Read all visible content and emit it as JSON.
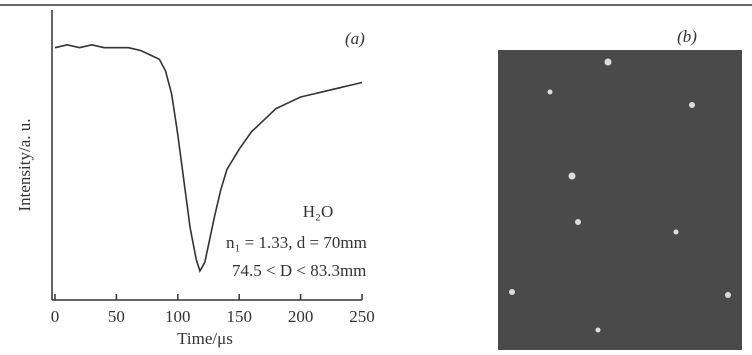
{
  "chart_data": {
    "type": "line",
    "panel_label": "(a)",
    "xlabel": "Time/μs",
    "ylabel": "Intensity/a. u.",
    "x": [
      0,
      10,
      20,
      30,
      40,
      50,
      60,
      70,
      80,
      85,
      90,
      95,
      100,
      105,
      110,
      115,
      118,
      122,
      125,
      130,
      135,
      140,
      150,
      160,
      170,
      180,
      190,
      200,
      210,
      220,
      230,
      240,
      250
    ],
    "series": [
      {
        "color": "#333333",
        "values": [
          0.87,
          0.88,
          0.87,
          0.88,
          0.87,
          0.87,
          0.87,
          0.86,
          0.84,
          0.83,
          0.79,
          0.71,
          0.57,
          0.41,
          0.25,
          0.14,
          0.1,
          0.13,
          0.19,
          0.29,
          0.38,
          0.45,
          0.52,
          0.58,
          0.62,
          0.66,
          0.68,
          0.7,
          0.71,
          0.72,
          0.73,
          0.74,
          0.75
        ]
      }
    ],
    "xlim": [
      0,
      250
    ],
    "xticks": [
      0,
      50,
      100,
      150,
      200,
      250
    ],
    "ylim": [
      0,
      1
    ],
    "annotations": [
      "H₂O",
      "n₁ = 1.33, d = 70mm",
      "74.5 < D < 83.3mm"
    ]
  },
  "image_panel": {
    "label": "(b)"
  }
}
